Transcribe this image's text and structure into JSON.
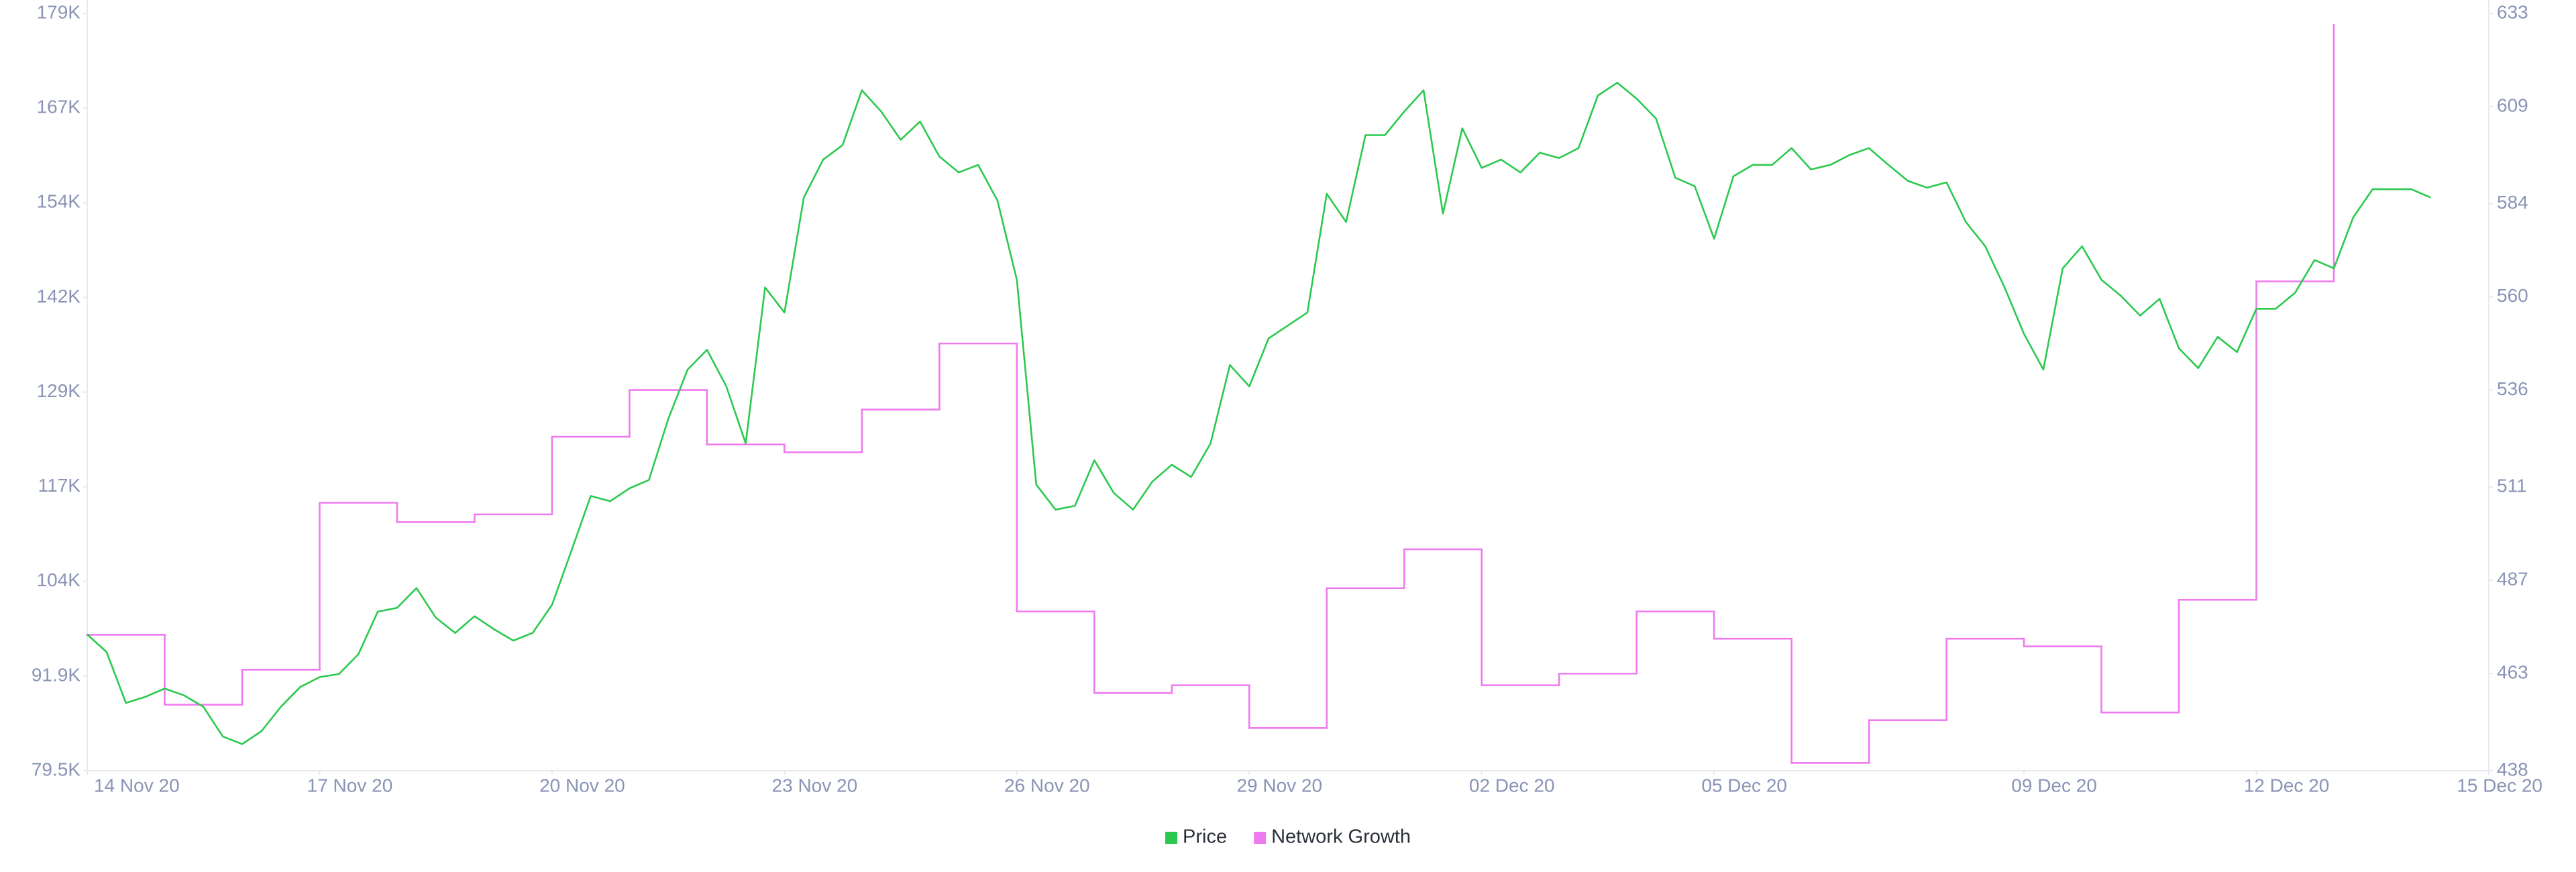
{
  "chart_data": {
    "type": "line",
    "xlim": [
      "2020-11-14",
      "2020-12-15"
    ],
    "xticks": [
      {
        "value": "2020-11-14",
        "label": "14 Nov 20"
      },
      {
        "value": "2020-11-17",
        "label": "17 Nov 20"
      },
      {
        "value": "2020-11-20",
        "label": "20 Nov 20"
      },
      {
        "value": "2020-11-23",
        "label": "23 Nov 20"
      },
      {
        "value": "2020-11-26",
        "label": "26 Nov 20"
      },
      {
        "value": "2020-11-29",
        "label": "29 Nov 20"
      },
      {
        "value": "2020-12-02",
        "label": "02 Dec 20"
      },
      {
        "value": "2020-12-05",
        "label": "05 Dec 20"
      },
      {
        "value": "2020-12-09",
        "label": "09 Dec 20"
      },
      {
        "value": "2020-12-12",
        "label": "12 Dec 20"
      },
      {
        "value": "2020-12-15",
        "label": "15 Dec 20"
      }
    ],
    "ylim": [
      79500,
      179000
    ],
    "yticks": [
      {
        "value": 79500,
        "label": "79.5K"
      },
      {
        "value": 91937.5,
        "label": "91.9K"
      },
      {
        "value": 104375,
        "label": "104K"
      },
      {
        "value": 116812.5,
        "label": "117K"
      },
      {
        "value": 129250,
        "label": "129K"
      },
      {
        "value": 141687.5,
        "label": "142K"
      },
      {
        "value": 154125,
        "label": "154K"
      },
      {
        "value": 166562.5,
        "label": "167K"
      },
      {
        "value": 179000,
        "label": "179K"
      }
    ],
    "y2lim": [
      438,
      633
    ],
    "y2ticks": [
      438,
      463,
      487,
      511,
      536,
      560,
      584,
      609,
      633
    ],
    "legend": "bottom",
    "series": [
      {
        "name": "Price",
        "color": "#2bc94f",
        "axis": "y",
        "x": [
          "2020-11-14T00:00",
          "2020-11-14T06:00",
          "2020-11-14T12:00",
          "2020-11-14T18:00",
          "2020-11-15T00:00",
          "2020-11-15T06:00",
          "2020-11-15T12:00",
          "2020-11-15T18:00",
          "2020-11-16T00:00",
          "2020-11-16T06:00",
          "2020-11-16T12:00",
          "2020-11-16T18:00",
          "2020-11-17T00:00",
          "2020-11-17T06:00",
          "2020-11-17T12:00",
          "2020-11-17T18:00",
          "2020-11-18T00:00",
          "2020-11-18T06:00",
          "2020-11-18T12:00",
          "2020-11-18T18:00",
          "2020-11-19T00:00",
          "2020-11-19T06:00",
          "2020-11-19T12:00",
          "2020-11-19T18:00",
          "2020-11-20T00:00",
          "2020-11-20T06:00",
          "2020-11-20T12:00",
          "2020-11-20T18:00",
          "2020-11-21T00:00",
          "2020-11-21T06:00",
          "2020-11-21T12:00",
          "2020-11-21T18:00",
          "2020-11-22T00:00",
          "2020-11-22T06:00",
          "2020-11-22T12:00",
          "2020-11-22T18:00",
          "2020-11-23T00:00",
          "2020-11-23T06:00",
          "2020-11-23T12:00",
          "2020-11-23T18:00",
          "2020-11-24T00:00",
          "2020-11-24T06:00",
          "2020-11-24T12:00",
          "2020-11-24T18:00",
          "2020-11-25T00:00",
          "2020-11-25T06:00",
          "2020-11-25T12:00",
          "2020-11-25T18:00",
          "2020-11-26T00:00",
          "2020-11-26T06:00",
          "2020-11-26T12:00",
          "2020-11-26T18:00",
          "2020-11-27T00:00",
          "2020-11-27T06:00",
          "2020-11-27T12:00",
          "2020-11-27T18:00",
          "2020-11-28T00:00",
          "2020-11-28T06:00",
          "2020-11-28T12:00",
          "2020-11-28T18:00",
          "2020-11-29T00:00",
          "2020-11-29T06:00",
          "2020-11-29T12:00",
          "2020-11-29T18:00",
          "2020-11-30T00:00",
          "2020-11-30T06:00",
          "2020-11-30T12:00",
          "2020-11-30T18:00",
          "2020-12-01T00:00",
          "2020-12-01T06:00",
          "2020-12-01T12:00",
          "2020-12-01T18:00",
          "2020-12-02T00:00",
          "2020-12-02T06:00",
          "2020-12-02T12:00",
          "2020-12-02T18:00",
          "2020-12-03T00:00",
          "2020-12-03T06:00",
          "2020-12-03T12:00",
          "2020-12-03T18:00",
          "2020-12-04T00:00",
          "2020-12-04T06:00",
          "2020-12-04T12:00",
          "2020-12-04T18:00",
          "2020-12-05T00:00",
          "2020-12-05T06:00",
          "2020-12-05T12:00",
          "2020-12-05T18:00",
          "2020-12-06T00:00",
          "2020-12-06T06:00",
          "2020-12-06T12:00",
          "2020-12-06T18:00",
          "2020-12-07T00:00",
          "2020-12-07T06:00",
          "2020-12-07T12:00",
          "2020-12-07T18:00",
          "2020-12-08T00:00",
          "2020-12-08T06:00",
          "2020-12-08T12:00",
          "2020-12-08T18:00",
          "2020-12-09T00:00",
          "2020-12-09T06:00",
          "2020-12-09T12:00",
          "2020-12-09T18:00",
          "2020-12-10T00:00",
          "2020-12-10T06:00",
          "2020-12-10T12:00",
          "2020-12-10T18:00",
          "2020-12-11T00:00",
          "2020-12-11T06:00",
          "2020-12-11T12:00",
          "2020-12-11T18:00",
          "2020-12-12T00:00",
          "2020-12-12T06:00",
          "2020-12-12T12:00",
          "2020-12-12T18:00",
          "2020-12-13T00:00",
          "2020-12-13T06:00",
          "2020-12-13T12:00",
          "2020-12-13T18:00",
          "2020-12-14T00:00",
          "2020-12-14T06:00"
        ],
        "values": [
          97400,
          95100,
          88400,
          89200,
          90300,
          89400,
          87900,
          84000,
          83000,
          84700,
          87900,
          90500,
          91800,
          92200,
          94800,
          100400,
          100900,
          103500,
          99600,
          97600,
          99800,
          98100,
          96600,
          97600,
          101300,
          108400,
          115600,
          114900,
          116600,
          117700,
          125700,
          132200,
          134800,
          130000,
          122500,
          143000,
          139700,
          154800,
          159800,
          161700,
          168900,
          166100,
          162400,
          164800,
          160200,
          158100,
          159100,
          154400,
          144000,
          117100,
          113800,
          114300,
          120300,
          116000,
          113800,
          117500,
          119700,
          118100,
          122500,
          132800,
          130000,
          136300,
          138000,
          139700,
          155300,
          151600,
          163000,
          163000,
          166100,
          168900,
          152700,
          163900,
          158700,
          159800,
          158100,
          160700,
          160000,
          161300,
          168200,
          169900,
          167800,
          165200,
          157400,
          156300,
          149400,
          157600,
          159100,
          159100,
          161300,
          158500,
          159100,
          160400,
          161300,
          159100,
          157000,
          156100,
          156800,
          151600,
          148400,
          143000,
          136900,
          132200,
          145500,
          148400,
          144000,
          141900,
          139300,
          141500,
          135000,
          132400,
          136500,
          134500,
          140200,
          140200,
          142300,
          146600,
          145500,
          152200,
          155900,
          155900,
          155900,
          154800
        ]
      },
      {
        "name": "Network Growth",
        "color": "#ef7aef",
        "axis": "y2",
        "step": true,
        "x": [
          "2020-11-14",
          "2020-11-15",
          "2020-11-16",
          "2020-11-17",
          "2020-11-18",
          "2020-11-19",
          "2020-11-20",
          "2020-11-21",
          "2020-11-22",
          "2020-11-23",
          "2020-11-24",
          "2020-11-25",
          "2020-11-26",
          "2020-11-27",
          "2020-11-28",
          "2020-11-29",
          "2020-11-30",
          "2020-12-01",
          "2020-12-02",
          "2020-12-03",
          "2020-12-04",
          "2020-12-05",
          "2020-12-06",
          "2020-12-07",
          "2020-12-08",
          "2020-12-09",
          "2020-12-10",
          "2020-12-11",
          "2020-12-12",
          "2020-12-13"
        ],
        "values": [
          473,
          455,
          464,
          507,
          502,
          504,
          524,
          536,
          522,
          520,
          531,
          548,
          479,
          458,
          460,
          449,
          485,
          495,
          460,
          463,
          479,
          472,
          440,
          451,
          472,
          470,
          453,
          482,
          564,
          630
        ]
      }
    ]
  }
}
